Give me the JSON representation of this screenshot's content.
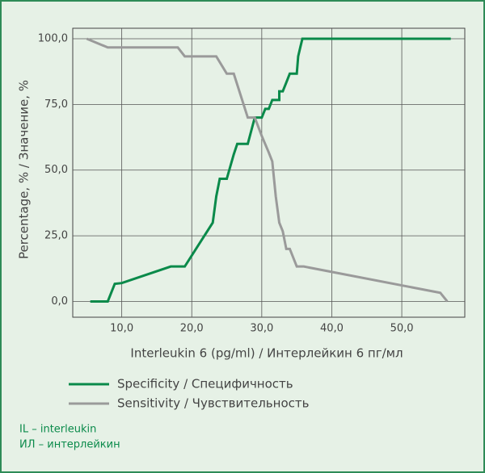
{
  "chart_data": {
    "type": "line",
    "xlabel": "Interleukin 6 (pg/ml) / Интерлейкин 6 пг/мл",
    "ylabel": "Percentage, % / Значение, %",
    "xlim": [
      3,
      59
    ],
    "ylim": [
      -6,
      104
    ],
    "xticks": [
      {
        "value": 10,
        "label": "10,0"
      },
      {
        "value": 20,
        "label": "20,0"
      },
      {
        "value": 30,
        "label": "30,0"
      },
      {
        "value": 40,
        "label": "40,0"
      },
      {
        "value": 50,
        "label": "50,0"
      }
    ],
    "yticks": [
      {
        "value": 0,
        "label": "0,0"
      },
      {
        "value": 25,
        "label": "25,0"
      },
      {
        "value": 50,
        "label": "50,0"
      },
      {
        "value": 75,
        "label": "75,0"
      },
      {
        "value": 100,
        "label": "100,0"
      }
    ],
    "grid": true,
    "series": [
      {
        "name": "Specificity / Специфичность",
        "color": "#0a8a4a",
        "x": [
          5.5,
          8,
          9,
          10,
          17,
          19,
          23,
          23.5,
          24,
          25,
          26,
          26.5,
          28,
          29,
          30,
          30.5,
          31,
          31.5,
          32.5,
          32.5,
          33,
          33.5,
          34,
          35,
          35.2,
          35.5,
          35.8,
          57
        ],
        "values": [
          0,
          0,
          6.7,
          7,
          13.3,
          13.3,
          30,
          40,
          46.7,
          46.7,
          56,
          60,
          60,
          70,
          70,
          73.3,
          73.3,
          76.7,
          76.7,
          80,
          80,
          83.3,
          86.7,
          86.7,
          93.3,
          96.7,
          100,
          100
        ]
      },
      {
        "name": "Sensitivity / Чувствительность",
        "color": "#9a9a9a",
        "x": [
          5,
          8,
          18,
          19,
          23.5,
          25,
          26,
          28,
          29,
          30,
          31,
          31.5,
          32,
          32.5,
          33,
          33.5,
          34,
          35,
          36,
          55.5,
          56.5
        ],
        "values": [
          100,
          96.7,
          96.7,
          93.3,
          93.3,
          86.7,
          86.7,
          70,
          70,
          63,
          56.7,
          53.3,
          40,
          30,
          26.7,
          20,
          20,
          13.3,
          13.3,
          3.3,
          0
        ]
      }
    ],
    "notes": [
      "IL – interleukin",
      "ИЛ – интерлейкин"
    ]
  }
}
